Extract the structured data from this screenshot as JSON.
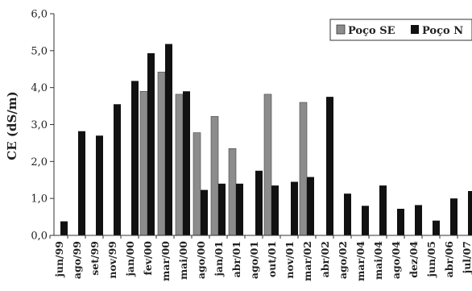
{
  "chart_data": {
    "type": "bar",
    "title": "",
    "xlabel": "",
    "ylabel": "CE (dS/m)",
    "ylim": [
      0,
      6
    ],
    "yticks": [
      "0,0",
      "1,0",
      "2,0",
      "3,0",
      "4,0",
      "5,0",
      "6,0"
    ],
    "grid": false,
    "legend_position": "top-right",
    "categories": [
      "jun/99",
      "ago/99",
      "set/99",
      "nov/99",
      "jan/00",
      "fev/00",
      "mar/00",
      "mai/00",
      "ago/00",
      "jan/01",
      "abr/01",
      "ago/01",
      "out/01",
      "nov/01",
      "mar/02",
      "abr/02",
      "ago/02",
      "mar/04",
      "mai/04",
      "ago/04",
      "dez/04",
      "jun/05",
      "abr/06",
      "jul/07"
    ],
    "series": [
      {
        "name": "Poço SE",
        "color": "#8c8c8c",
        "values": [
          null,
          null,
          null,
          null,
          null,
          3.9,
          4.42,
          3.82,
          2.78,
          3.22,
          2.35,
          null,
          3.82,
          null,
          3.6,
          null,
          null,
          null,
          null,
          null,
          null,
          null,
          null,
          null
        ]
      },
      {
        "name": "Poço N",
        "color": "#111111",
        "values": [
          0.38,
          2.82,
          2.7,
          3.55,
          4.18,
          4.93,
          5.18,
          3.9,
          1.23,
          1.4,
          1.4,
          1.75,
          1.35,
          1.45,
          1.58,
          3.75,
          1.13,
          0.8,
          1.35,
          0.72,
          0.82,
          0.4,
          1.0,
          1.2
        ]
      }
    ]
  }
}
